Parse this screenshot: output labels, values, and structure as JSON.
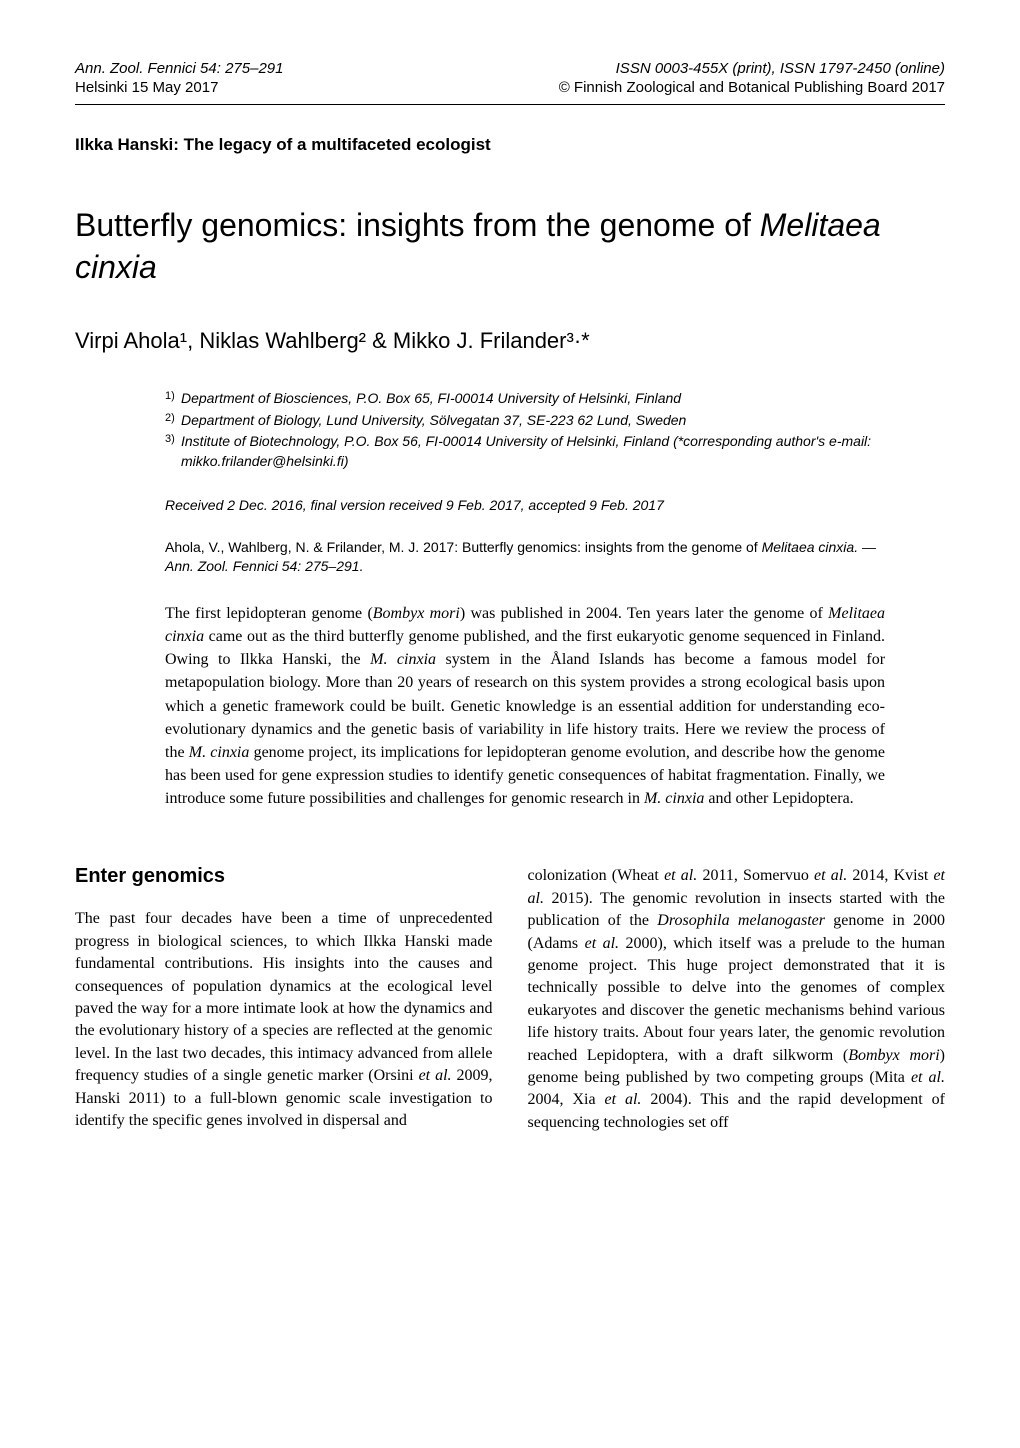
{
  "header": {
    "journal_ref": "Ann. Zool. Fennici 54: 275–291",
    "issn": "ISSN 0003-455X (print), ISSN 1797-2450 (online)",
    "location_date": "Helsinki 15 May 2017",
    "copyright": "© Finnish Zoological and Botanical Publishing Board 2017"
  },
  "series_title": "Ilkka Hanski: The legacy of a multifaceted ecologist",
  "article_title_prefix": "Butterfly genomics: insights from the genome of ",
  "article_title_italic": "Melitaea cinxia",
  "authors": "Virpi Ahola¹, Niklas Wahlberg² & Mikko J. Frilander³·*",
  "affiliations": [
    {
      "marker": "1)",
      "text": "Department of Biosciences, P.O. Box 65, FI-00014 University of Helsinki, Finland"
    },
    {
      "marker": "2)",
      "text": "Department of Biology, Lund University, Sölvegatan 37, SE-223 62 Lund, Sweden"
    },
    {
      "marker": "3)",
      "text": "Institute of Biotechnology, P.O. Box 56, FI-00014 University of Helsinki, Finland (*corresponding author's e-mail: mikko.frilander@helsinki.fi)"
    }
  ],
  "received": "Received 2 Dec. 2016, final version received 9 Feb. 2017, accepted 9 Feb. 2017",
  "citation_prefix": "Ahola, V., Wahlberg, N. & Frilander, M. J. 2017: Butterfly genomics: insights from the genome of ",
  "citation_italic": "Melitaea cinxia.",
  "citation_suffix": " — Ann. Zool. Fennici 54: 275–291.",
  "abstract_parts": [
    {
      "t": "The first lepidopteran genome (",
      "i": false
    },
    {
      "t": "Bombyx mori",
      "i": true
    },
    {
      "t": ") was published in 2004. Ten years later the genome of ",
      "i": false
    },
    {
      "t": "Melitaea cinxia",
      "i": true
    },
    {
      "t": " came out as the third butterfly genome published, and the first eukaryotic genome sequenced in Finland. Owing to Ilkka Hanski, the ",
      "i": false
    },
    {
      "t": "M. cinxia",
      "i": true
    },
    {
      "t": " system in the Åland Islands has become a famous model for metapopulation biology. More than 20 years of research on this system provides a strong ecological basis upon which a genetic framework could be built. Genetic knowledge is an essential addition for understanding eco-evolutionary dynamics and the genetic basis of variability in life history traits. Here we review the process of the ",
      "i": false
    },
    {
      "t": "M. cinxia",
      "i": true
    },
    {
      "t": " genome project, its implications for lepidopteran genome evolution, and describe how the genome has been used for gene expression studies to identify genetic consequences of habitat fragmentation. Finally, we introduce some future possibilities and challenges for genomic research in ",
      "i": false
    },
    {
      "t": "M. cinxia",
      "i": true
    },
    {
      "t": " and other Lepidoptera.",
      "i": false
    }
  ],
  "section_heading": "Enter genomics",
  "col1_parts": [
    {
      "t": "The past four decades have been a time of unprecedented progress in biological sciences, to which Ilkka Hanski made fundamental contributions. His insights into the causes and consequences of population dynamics at the ecological level paved the way for a more intimate look at how the dynamics and the evolutionary history of a species are reflected at the genomic level. In the last two decades, this intimacy advanced from allele frequency studies of a single genetic marker (Orsini ",
      "i": false
    },
    {
      "t": "et al.",
      "i": true
    },
    {
      "t": " 2009, Hanski 2011) to a full-blown genomic scale investigation to identify the specific genes involved in dispersal and",
      "i": false
    }
  ],
  "col2_parts": [
    {
      "t": "colonization (Wheat ",
      "i": false
    },
    {
      "t": "et al.",
      "i": true
    },
    {
      "t": " 2011, Somervuo ",
      "i": false
    },
    {
      "t": "et al.",
      "i": true
    },
    {
      "t": " 2014, Kvist ",
      "i": false
    },
    {
      "t": "et al.",
      "i": true
    },
    {
      "t": " 2015). The genomic revolution in insects started with the publication of the ",
      "i": false
    },
    {
      "t": "Drosophila melanogaster",
      "i": true
    },
    {
      "t": " genome in 2000 (Adams ",
      "i": false
    },
    {
      "t": "et al.",
      "i": true
    },
    {
      "t": " 2000), which itself was a prelude to the human genome project. This huge project demonstrated that it is technically possible to delve into the genomes of complex eukaryotes and discover the genetic mechanisms behind various life history traits. About four years later, the genomic revolution reached Lepidoptera, with a draft silkworm (",
      "i": false
    },
    {
      "t": "Bombyx mori",
      "i": true
    },
    {
      "t": ") genome being published by two competing groups (Mita ",
      "i": false
    },
    {
      "t": "et al.",
      "i": true
    },
    {
      "t": " 2004, Xia ",
      "i": false
    },
    {
      "t": "et al.",
      "i": true
    },
    {
      "t": " 2004). This and the rapid development of sequencing technologies set off",
      "i": false
    }
  ]
}
